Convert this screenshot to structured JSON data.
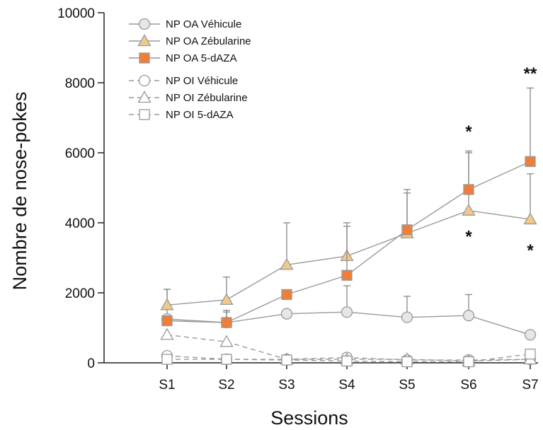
{
  "chart_data": {
    "type": "line",
    "xlabel": "Sessions",
    "ylabel": "Nombre de nose-pokes",
    "categories": [
      "S1",
      "S2",
      "S3",
      "S4",
      "S5",
      "S6",
      "S7"
    ],
    "ylim": [
      0,
      10000
    ],
    "yticks": [
      0,
      2000,
      4000,
      6000,
      8000,
      10000
    ],
    "grid": false,
    "legend_position": "top-left",
    "series": [
      {
        "name": "NP OA Véhicule",
        "marker": "circle",
        "fill": "#e6e6e6",
        "dashed": false,
        "values": [
          1250,
          1150,
          1400,
          1450,
          1300,
          1350,
          800
        ],
        "errors": [
          850,
          300,
          null,
          750,
          600,
          600,
          null
        ]
      },
      {
        "name": "NP OA Zébularine",
        "marker": "triangle",
        "fill": "#f2c98c",
        "dashed": false,
        "values": [
          1650,
          1800,
          2800,
          3050,
          3700,
          4350,
          4100
        ],
        "errors": [
          450,
          650,
          1200,
          950,
          1250,
          1700,
          1300
        ]
      },
      {
        "name": "NP OA 5-dAZA",
        "marker": "square",
        "fill": "#ee7e3a",
        "dashed": false,
        "values": [
          1200,
          1150,
          1950,
          2500,
          3800,
          4950,
          5750
        ],
        "errors": [
          null,
          350,
          null,
          1400,
          1050,
          1050,
          2100
        ]
      },
      {
        "name": "NP OI Véhicule",
        "marker": "circle",
        "fill": "#ffffff",
        "dashed": true,
        "values": [
          200,
          100,
          100,
          150,
          80,
          80,
          100
        ],
        "errors": [
          null,
          null,
          null,
          null,
          null,
          null,
          null
        ]
      },
      {
        "name": "NP OI Zébularine",
        "marker": "triangle",
        "fill": "#ffffff",
        "dashed": true,
        "values": [
          800,
          600,
          100,
          100,
          100,
          50,
          100
        ],
        "errors": [
          null,
          null,
          null,
          null,
          null,
          null,
          null
        ]
      },
      {
        "name": "NP OI 5-dAZA",
        "marker": "square",
        "fill": "#ffffff",
        "dashed": true,
        "values": [
          100,
          100,
          80,
          50,
          30,
          30,
          250
        ],
        "errors": [
          null,
          null,
          null,
          null,
          null,
          null,
          null
        ]
      }
    ],
    "annotations": [
      {
        "text": "*",
        "category": "S6",
        "value": 6650
      },
      {
        "text": "**",
        "category": "S7",
        "value": 8300
      },
      {
        "text": "*",
        "category": "S6",
        "value": 3650
      },
      {
        "text": "*",
        "category": "S7",
        "value": 3250
      }
    ]
  }
}
